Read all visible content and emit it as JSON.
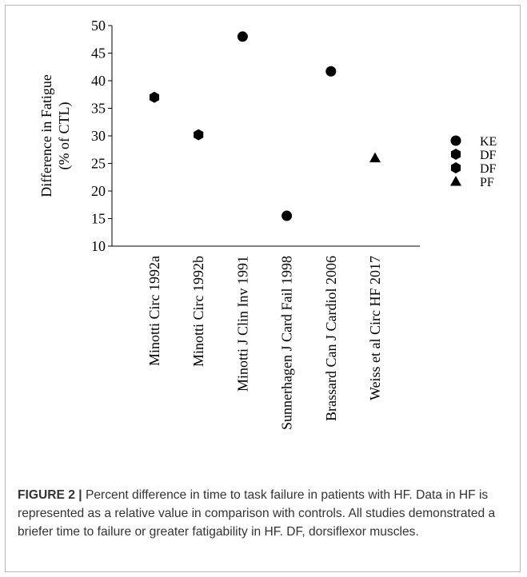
{
  "chart_data": {
    "type": "scatter",
    "title": "",
    "ylabel_line1": "Difference in Fatigue",
    "ylabel_line2": "(% of CTL)",
    "ylim": [
      10,
      50
    ],
    "yticks": [
      10,
      15,
      20,
      25,
      30,
      35,
      40,
      45,
      50
    ],
    "categories": [
      "Minotti Circ 1992a",
      "Minotti Circ 1992b",
      "Minotti J Clin Inv 1991",
      "Sunnerhagen J Card Fail 1998",
      "Brassard Can J Cardiol 2006",
      "Weiss et al Circ HF 2017"
    ],
    "points": [
      {
        "category": "Minotti Circ 1992a",
        "value": 37,
        "marker": "hexagon"
      },
      {
        "category": "Minotti Circ 1992b",
        "value": 30.2,
        "marker": "hexagon"
      },
      {
        "category": "Minotti J Clin Inv 1991",
        "value": 48,
        "marker": "circle"
      },
      {
        "category": "Sunnerhagen J Card Fail 1998",
        "value": 15.5,
        "marker": "circle"
      },
      {
        "category": "Brassard Can J Cardiol 2006",
        "value": 41.7,
        "marker": "circle"
      },
      {
        "category": "Weiss et al Circ HF 2017",
        "value": 26,
        "marker": "triangle"
      }
    ],
    "legend": [
      {
        "label": "KE",
        "marker": "circle"
      },
      {
        "label": "DF",
        "marker": "hexagon"
      },
      {
        "label": "DF",
        "marker": "hexagon"
      },
      {
        "label": "PF",
        "marker": "triangle"
      }
    ],
    "legend_position": "right",
    "grid": false,
    "marker_color": "#000000"
  },
  "caption": {
    "label": "FIGURE 2 |",
    "text": " Percent difference in time to task failure in patients with HF. Data in HF is represented as a relative value in comparison with controls. All studies demonstrated a briefer time to failure or greater fatigability in HF. DF, dorsiflexor muscles."
  }
}
